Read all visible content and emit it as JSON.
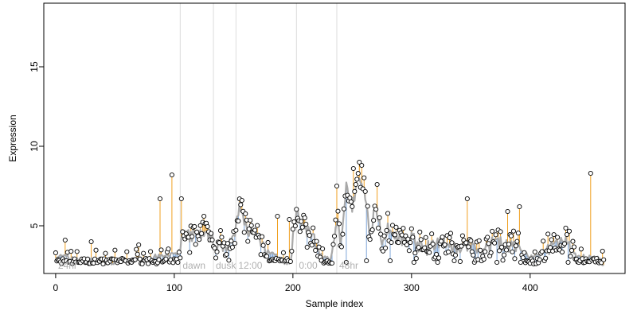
{
  "chart_data": {
    "type": "line",
    "xlabel": "Sample index",
    "ylabel": "Expression",
    "xlim": [
      -10,
      480
    ],
    "ylim": [
      2.0,
      19.0
    ],
    "x_ticks": [
      0,
      100,
      200,
      300,
      400
    ],
    "y_ticks": [
      5,
      10,
      15
    ],
    "grid": false,
    "legend": "none",
    "phase_markers": [
      {
        "x": 0,
        "label": "24hr"
      },
      {
        "x": 105,
        "label": "dawn"
      },
      {
        "x": 133,
        "label": "dusk"
      },
      {
        "x": 152,
        "label": "12:00"
      },
      {
        "x": 203,
        "label": "0:00"
      },
      {
        "x": 237,
        "label": "48hr"
      }
    ],
    "fitted_line_color": "#a8a8a8",
    "lower_segment_color": "#7ea6d8",
    "upper_segment_color": "#f0a020",
    "point_fill": "#ffffff",
    "point_stroke": "#000000",
    "fitted_knots": [
      [
        0,
        3.1
      ],
      [
        20,
        2.9
      ],
      [
        40,
        2.7
      ],
      [
        60,
        2.8
      ],
      [
        80,
        3.0
      ],
      [
        95,
        3.1
      ],
      [
        103,
        3.2
      ],
      [
        108,
        4.3
      ],
      [
        120,
        4.4
      ],
      [
        130,
        4.3
      ],
      [
        138,
        3.6
      ],
      [
        150,
        4.0
      ],
      [
        155,
        6.1
      ],
      [
        160,
        5.0
      ],
      [
        170,
        4.3
      ],
      [
        180,
        3.4
      ],
      [
        190,
        2.8
      ],
      [
        198,
        2.7
      ],
      [
        203,
        6.0
      ],
      [
        208,
        5.0
      ],
      [
        215,
        4.5
      ],
      [
        225,
        3.0
      ],
      [
        232,
        2.8
      ],
      [
        237,
        5.5
      ],
      [
        240,
        4.0
      ],
      [
        245,
        7.5
      ],
      [
        250,
        6.0
      ],
      [
        255,
        8.0
      ],
      [
        260,
        7.0
      ],
      [
        265,
        4.5
      ],
      [
        270,
        6.5
      ],
      [
        275,
        4.0
      ],
      [
        280,
        5.0
      ],
      [
        290,
        4.2
      ],
      [
        300,
        4.3
      ],
      [
        310,
        3.5
      ],
      [
        320,
        3.8
      ],
      [
        330,
        4.0
      ],
      [
        340,
        3.5
      ],
      [
        350,
        3.8
      ],
      [
        360,
        3.3
      ],
      [
        370,
        4.0
      ],
      [
        380,
        3.8
      ],
      [
        390,
        3.6
      ],
      [
        400,
        3.0
      ],
      [
        410,
        3.3
      ],
      [
        420,
        3.8
      ],
      [
        430,
        4.0
      ],
      [
        440,
        3.0
      ],
      [
        450,
        3.1
      ],
      [
        460,
        2.8
      ],
      [
        463,
        2.2
      ]
    ],
    "spikes": [
      [
        8,
        4.1
      ],
      [
        30,
        4.0
      ],
      [
        70,
        3.8
      ],
      [
        88,
        6.7
      ],
      [
        98,
        8.2
      ],
      [
        106,
        6.7
      ],
      [
        125,
        5.6
      ],
      [
        187,
        5.6
      ],
      [
        197,
        5.4
      ],
      [
        237,
        7.5
      ],
      [
        251,
        8.6
      ],
      [
        256,
        9.0
      ],
      [
        258,
        8.8
      ],
      [
        271,
        7.6
      ],
      [
        347,
        6.7
      ],
      [
        381,
        5.9
      ],
      [
        391,
        6.2
      ],
      [
        451,
        8.3
      ]
    ],
    "dips": [
      [
        245,
        2.7
      ],
      [
        262,
        2.8
      ],
      [
        282,
        2.8
      ],
      [
        302,
        2.7
      ],
      [
        322,
        2.7
      ],
      [
        336,
        2.8
      ],
      [
        353,
        2.7
      ],
      [
        372,
        2.7
      ],
      [
        392,
        2.7
      ],
      [
        412,
        2.8
      ],
      [
        432,
        2.7
      ],
      [
        446,
        2.7
      ]
    ],
    "n_samples": 463
  }
}
